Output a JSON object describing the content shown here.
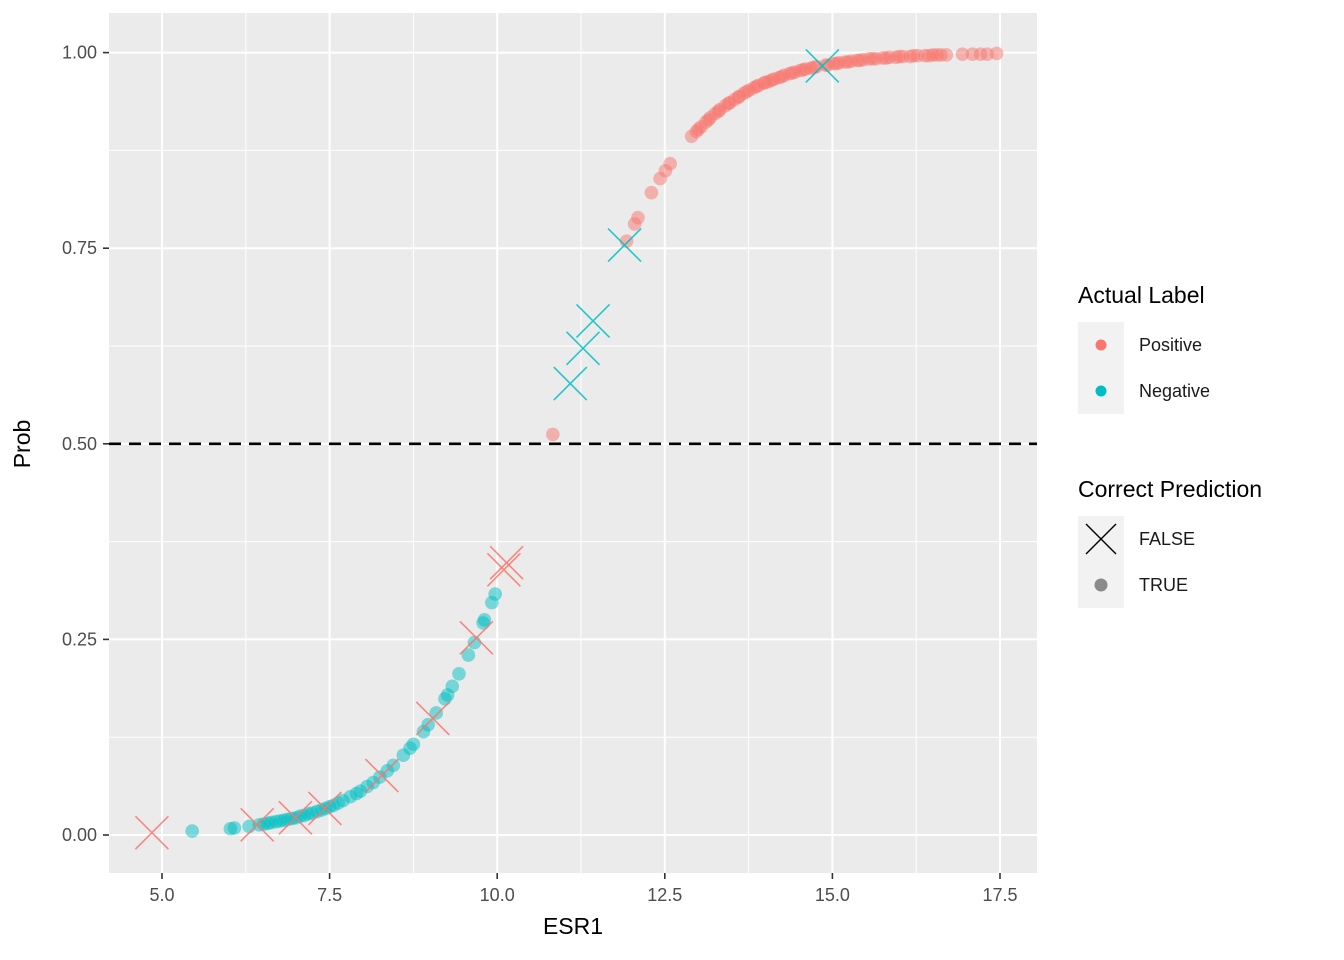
{
  "axes": {
    "x": {
      "title": "ESR1",
      "major_ticks": [
        5.0,
        7.5,
        10.0,
        12.5,
        15.0,
        17.5
      ],
      "tick_labels": [
        "5.0",
        "7.5",
        "10.0",
        "12.5",
        "15.0",
        "17.5"
      ],
      "minor_ticks": [
        6.25,
        8.75,
        11.25,
        13.75,
        16.25
      ],
      "range": [
        4.17,
        18.08
      ]
    },
    "y": {
      "title": "Prob",
      "major_ticks": [
        0.0,
        0.25,
        0.5,
        0.75,
        1.0
      ],
      "tick_labels": [
        "0.00",
        "0.25",
        "0.50",
        "0.75",
        "1.00"
      ],
      "minor_ticks": [
        0.125,
        0.375,
        0.625,
        0.875
      ],
      "range": [
        -0.05,
        1.05
      ]
    }
  },
  "reference_line": {
    "y": 0.5,
    "style": "dashed",
    "color": "#000000"
  },
  "panel": {
    "background": "#EBEBEB",
    "grid_color": "#FFFFFF"
  },
  "colors": {
    "positive": "#F8766D",
    "negative": "#00BFC4"
  },
  "legend": {
    "groups": [
      {
        "title": "Actual Label",
        "items": [
          {
            "label": "Positive",
            "glyph": "dot",
            "color": "#F8766D"
          },
          {
            "label": "Negative",
            "glyph": "dot",
            "color": "#00BFC4"
          }
        ]
      },
      {
        "title": "Correct Prediction",
        "items": [
          {
            "label": "FALSE",
            "glyph": "x",
            "color": "#000000"
          },
          {
            "label": "TRUE",
            "glyph": "dot",
            "color": "#8A8A8A"
          }
        ]
      }
    ]
  },
  "chart_data": {
    "type": "scatter",
    "xlabel": "ESR1",
    "ylabel": "Prob",
    "xlim": [
      4.17,
      18.08
    ],
    "ylim": [
      -0.05,
      1.05
    ],
    "grid": true,
    "legend_position": "right",
    "annotations": [
      {
        "type": "hline",
        "y": 0.5,
        "style": "dashed",
        "color": "#000000"
      }
    ],
    "series": [
      {
        "name": "Positive / TRUE",
        "actual_label": "Positive",
        "correct_prediction": "TRUE",
        "shape": "circle",
        "color": "#F8766D",
        "points": [
          [
            10.83,
            0.512
          ],
          [
            11.93,
            0.759
          ],
          [
            12.05,
            0.781
          ],
          [
            12.1,
            0.789
          ],
          [
            12.3,
            0.821
          ],
          [
            12.43,
            0.839
          ],
          [
            12.51,
            0.849
          ],
          [
            12.58,
            0.858
          ],
          [
            12.9,
            0.893
          ],
          [
            12.97,
            0.899
          ],
          [
            13.0,
            0.902
          ],
          [
            13.04,
            0.905
          ],
          [
            13.11,
            0.911
          ],
          [
            13.15,
            0.914
          ],
          [
            13.18,
            0.917
          ],
          [
            13.25,
            0.922
          ],
          [
            13.3,
            0.925
          ],
          [
            13.32,
            0.927
          ],
          [
            13.4,
            0.932
          ],
          [
            13.45,
            0.935
          ],
          [
            13.47,
            0.936
          ],
          [
            13.54,
            0.94
          ],
          [
            13.6,
            0.943
          ],
          [
            13.61,
            0.944
          ],
          [
            13.68,
            0.948
          ],
          [
            13.72,
            0.95
          ],
          [
            13.76,
            0.952
          ],
          [
            13.83,
            0.955
          ],
          [
            13.87,
            0.957
          ],
          [
            13.9,
            0.958
          ],
          [
            13.98,
            0.961
          ],
          [
            14.0,
            0.962
          ],
          [
            14.05,
            0.963
          ],
          [
            14.1,
            0.965
          ],
          [
            14.13,
            0.966
          ],
          [
            14.2,
            0.968
          ],
          [
            14.24,
            0.969
          ],
          [
            14.28,
            0.971
          ],
          [
            14.36,
            0.973
          ],
          [
            14.4,
            0.974
          ],
          [
            14.44,
            0.975
          ],
          [
            14.52,
            0.977
          ],
          [
            14.56,
            0.978
          ],
          [
            14.6,
            0.979
          ],
          [
            14.68,
            0.98
          ],
          [
            14.72,
            0.981
          ],
          [
            14.76,
            0.982
          ],
          [
            14.9,
            0.984
          ],
          [
            14.93,
            0.984
          ],
          [
            15.02,
            0.986
          ],
          [
            15.06,
            0.986
          ],
          [
            15.1,
            0.987
          ],
          [
            15.19,
            0.988
          ],
          [
            15.23,
            0.988
          ],
          [
            15.28,
            0.989
          ],
          [
            15.37,
            0.99
          ],
          [
            15.41,
            0.99
          ],
          [
            15.46,
            0.991
          ],
          [
            15.55,
            0.992
          ],
          [
            15.6,
            0.992
          ],
          [
            15.65,
            0.992
          ],
          [
            15.75,
            0.993
          ],
          [
            15.8,
            0.993
          ],
          [
            15.85,
            0.994
          ],
          [
            15.95,
            0.994
          ],
          [
            16.0,
            0.995
          ],
          [
            16.05,
            0.995
          ],
          [
            16.16,
            0.995
          ],
          [
            16.21,
            0.996
          ],
          [
            16.27,
            0.996
          ],
          [
            16.38,
            0.996
          ],
          [
            16.44,
            0.996
          ],
          [
            16.5,
            0.997
          ],
          [
            16.56,
            0.997
          ],
          [
            16.62,
            0.997
          ],
          [
            16.7,
            0.997
          ],
          [
            16.94,
            0.998
          ],
          [
            17.09,
            0.998
          ],
          [
            17.21,
            0.998
          ],
          [
            17.31,
            0.998
          ],
          [
            17.45,
            0.999
          ]
        ]
      },
      {
        "name": "Negative / TRUE",
        "actual_label": "Negative",
        "correct_prediction": "TRUE",
        "shape": "circle",
        "color": "#00BFC4",
        "points": [
          [
            5.45,
            0.005
          ],
          [
            6.02,
            0.008
          ],
          [
            6.08,
            0.009
          ],
          [
            6.3,
            0.011
          ],
          [
            6.45,
            0.013
          ],
          [
            6.52,
            0.014
          ],
          [
            6.58,
            0.015
          ],
          [
            6.63,
            0.016
          ],
          [
            6.7,
            0.017
          ],
          [
            6.76,
            0.018
          ],
          [
            6.82,
            0.019
          ],
          [
            6.88,
            0.02
          ],
          [
            6.94,
            0.021
          ],
          [
            7.0,
            0.022
          ],
          [
            7.06,
            0.024
          ],
          [
            7.12,
            0.025
          ],
          [
            7.18,
            0.027
          ],
          [
            7.24,
            0.028
          ],
          [
            7.31,
            0.03
          ],
          [
            7.38,
            0.032
          ],
          [
            7.44,
            0.034
          ],
          [
            7.5,
            0.036
          ],
          [
            7.56,
            0.038
          ],
          [
            7.63,
            0.041
          ],
          [
            7.7,
            0.044
          ],
          [
            7.81,
            0.049
          ],
          [
            7.9,
            0.053
          ],
          [
            7.96,
            0.056
          ],
          [
            8.06,
            0.062
          ],
          [
            8.15,
            0.067
          ],
          [
            8.25,
            0.074
          ],
          [
            8.36,
            0.082
          ],
          [
            8.45,
            0.089
          ],
          [
            8.6,
            0.102
          ],
          [
            8.7,
            0.111
          ],
          [
            8.75,
            0.116
          ],
          [
            8.9,
            0.132
          ],
          [
            8.97,
            0.141
          ],
          [
            9.09,
            0.156
          ],
          [
            9.22,
            0.174
          ],
          [
            9.26,
            0.179
          ],
          [
            9.33,
            0.19
          ],
          [
            9.43,
            0.206
          ],
          [
            9.57,
            0.23
          ],
          [
            9.66,
            0.246
          ],
          [
            9.79,
            0.271
          ],
          [
            9.81,
            0.275
          ],
          [
            9.92,
            0.297
          ],
          [
            9.97,
            0.308
          ]
        ]
      },
      {
        "name": "Positive / FALSE",
        "actual_label": "Positive",
        "correct_prediction": "FALSE",
        "shape": "x",
        "color": "#F8766D",
        "points": [
          [
            4.85,
            0.003
          ],
          [
            6.42,
            0.013
          ],
          [
            6.99,
            0.022
          ],
          [
            7.43,
            0.034
          ],
          [
            8.28,
            0.076
          ],
          [
            9.04,
            0.149
          ],
          [
            9.69,
            0.252
          ],
          [
            10.1,
            0.339
          ],
          [
            10.14,
            0.348
          ]
        ]
      },
      {
        "name": "Negative / FALSE",
        "actual_label": "Negative",
        "correct_prediction": "FALSE",
        "shape": "x",
        "color": "#00BFC4",
        "points": [
          [
            11.09,
            0.577
          ],
          [
            11.28,
            0.622
          ],
          [
            11.43,
            0.657
          ],
          [
            11.9,
            0.754
          ],
          [
            14.85,
            0.983
          ]
        ]
      }
    ]
  }
}
